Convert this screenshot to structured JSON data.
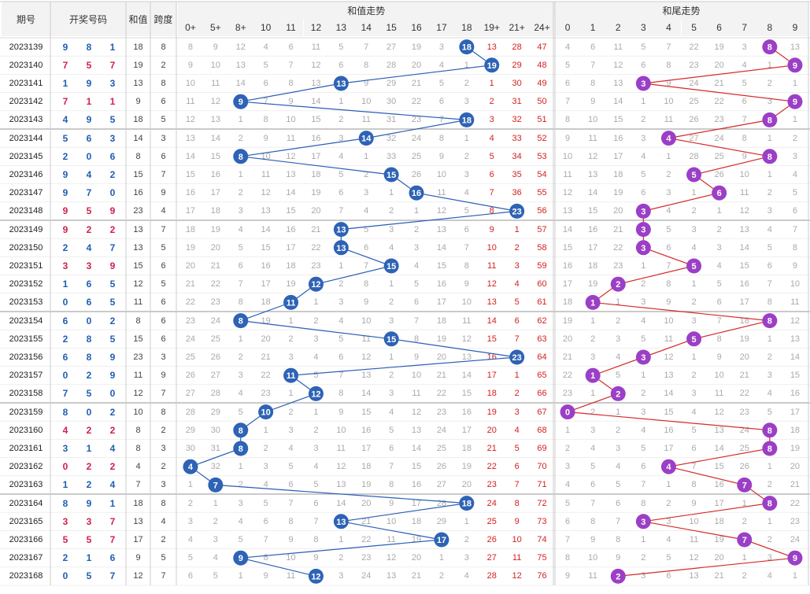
{
  "header": {
    "issue": "期号",
    "draw": "开奖号码",
    "sum": "和值",
    "span": "跨度",
    "sum_trend": "和值走势",
    "tail_trend": "和尾走势"
  },
  "sum_columns": [
    "0+",
    "5+",
    "8+",
    "10",
    "11",
    "12",
    "13",
    "14",
    "15",
    "16",
    "17",
    "18",
    "19+",
    "21+",
    "24+"
  ],
  "tail_columns": [
    "0",
    "1",
    "2",
    "3",
    "4",
    "5",
    "6",
    "7",
    "8",
    "9"
  ],
  "colors": {
    "blue_ball": "#2e63b5",
    "purple_ball": "#9b3fc6",
    "blue_line": "#2a5db5",
    "red_line": "#d42a2a",
    "draw_red": "#d0204c",
    "draw_blue": "#1f5fb0"
  },
  "rows": [
    {
      "issue": "2023139",
      "draw": [
        "9",
        "8",
        "1"
      ],
      "draw_color": "blue",
      "sum": "18",
      "span": "8",
      "sum_cells": [
        "8",
        "9",
        "12",
        "4",
        "6",
        "11",
        "5",
        "7",
        "27",
        "19",
        "3",
        "18",
        "13",
        "28",
        "47"
      ],
      "tail_cells": [
        "4",
        "6",
        "11",
        "5",
        "7",
        "22",
        "19",
        "3",
        "8",
        "13"
      ]
    },
    {
      "issue": "2023140",
      "draw": [
        "7",
        "5",
        "7"
      ],
      "draw_color": "red",
      "sum": "19",
      "span": "2",
      "sum_cells": [
        "9",
        "10",
        "13",
        "5",
        "7",
        "12",
        "6",
        "8",
        "28",
        "20",
        "4",
        "1",
        "19",
        "29",
        "48"
      ],
      "tail_cells": [
        "5",
        "7",
        "12",
        "6",
        "8",
        "23",
        "20",
        "4",
        "1",
        "9"
      ]
    },
    {
      "issue": "2023141",
      "draw": [
        "1",
        "9",
        "3"
      ],
      "draw_color": "blue",
      "sum": "13",
      "span": "8",
      "sum_cells": [
        "10",
        "11",
        "14",
        "6",
        "8",
        "13",
        "13",
        "9",
        "29",
        "21",
        "5",
        "2",
        "1",
        "30",
        "49"
      ],
      "tail_cells": [
        "6",
        "8",
        "13",
        "3",
        "9",
        "24",
        "21",
        "5",
        "2",
        "1"
      ]
    },
    {
      "issue": "2023142",
      "draw": [
        "7",
        "1",
        "1"
      ],
      "draw_color": "red",
      "sum": "9",
      "span": "6",
      "sum_cells": [
        "11",
        "12",
        "9",
        "7",
        "9",
        "14",
        "1",
        "10",
        "30",
        "22",
        "6",
        "3",
        "2",
        "31",
        "50"
      ],
      "tail_cells": [
        "7",
        "9",
        "14",
        "1",
        "10",
        "25",
        "22",
        "6",
        "3",
        "9"
      ]
    },
    {
      "issue": "2023143",
      "draw": [
        "4",
        "9",
        "5"
      ],
      "draw_color": "blue",
      "sum": "18",
      "span": "5",
      "sum_cells": [
        "12",
        "13",
        "1",
        "8",
        "10",
        "15",
        "2",
        "11",
        "31",
        "23",
        "7",
        "18",
        "3",
        "32",
        "51"
      ],
      "tail_cells": [
        "8",
        "10",
        "15",
        "2",
        "11",
        "26",
        "23",
        "7",
        "8",
        "1"
      ]
    },
    {
      "issue": "2023144",
      "draw": [
        "5",
        "6",
        "3"
      ],
      "draw_color": "blue",
      "sum": "14",
      "span": "3",
      "sum_cells": [
        "13",
        "14",
        "2",
        "9",
        "11",
        "16",
        "3",
        "14",
        "32",
        "24",
        "8",
        "1",
        "4",
        "33",
        "52"
      ],
      "tail_cells": [
        "9",
        "11",
        "16",
        "3",
        "4",
        "27",
        "24",
        "8",
        "1",
        "2"
      ]
    },
    {
      "issue": "2023145",
      "draw": [
        "2",
        "0",
        "6"
      ],
      "draw_color": "blue",
      "sum": "8",
      "span": "6",
      "sum_cells": [
        "14",
        "15",
        "8",
        "10",
        "12",
        "17",
        "4",
        "1",
        "33",
        "25",
        "9",
        "2",
        "5",
        "34",
        "53"
      ],
      "tail_cells": [
        "10",
        "12",
        "17",
        "4",
        "1",
        "28",
        "25",
        "9",
        "8",
        "3"
      ]
    },
    {
      "issue": "2023146",
      "draw": [
        "9",
        "4",
        "2"
      ],
      "draw_color": "blue",
      "sum": "15",
      "span": "7",
      "sum_cells": [
        "15",
        "16",
        "1",
        "11",
        "13",
        "18",
        "5",
        "2",
        "15",
        "26",
        "10",
        "3",
        "6",
        "35",
        "54"
      ],
      "tail_cells": [
        "11",
        "13",
        "18",
        "5",
        "2",
        "5",
        "26",
        "10",
        "1",
        "4"
      ]
    },
    {
      "issue": "2023147",
      "draw": [
        "9",
        "7",
        "0"
      ],
      "draw_color": "blue",
      "sum": "16",
      "span": "9",
      "sum_cells": [
        "16",
        "17",
        "2",
        "12",
        "14",
        "19",
        "6",
        "3",
        "1",
        "16",
        "11",
        "4",
        "7",
        "36",
        "55"
      ],
      "tail_cells": [
        "12",
        "14",
        "19",
        "6",
        "3",
        "1",
        "6",
        "11",
        "2",
        "5"
      ]
    },
    {
      "issue": "2023148",
      "draw": [
        "9",
        "5",
        "9"
      ],
      "draw_color": "red",
      "sum": "23",
      "span": "4",
      "sum_cells": [
        "17",
        "18",
        "3",
        "13",
        "15",
        "20",
        "7",
        "4",
        "2",
        "1",
        "12",
        "5",
        "8",
        "23",
        "56"
      ],
      "tail_cells": [
        "13",
        "15",
        "20",
        "3",
        "4",
        "2",
        "1",
        "12",
        "3",
        "6"
      ]
    },
    {
      "issue": "2023149",
      "draw": [
        "9",
        "2",
        "2"
      ],
      "draw_color": "red",
      "sum": "13",
      "span": "7",
      "sum_cells": [
        "18",
        "19",
        "4",
        "14",
        "16",
        "21",
        "13",
        "5",
        "3",
        "2",
        "13",
        "6",
        "9",
        "1",
        "57"
      ],
      "tail_cells": [
        "14",
        "16",
        "21",
        "3",
        "5",
        "3",
        "2",
        "13",
        "4",
        "7"
      ]
    },
    {
      "issue": "2023150",
      "draw": [
        "2",
        "4",
        "7"
      ],
      "draw_color": "blue",
      "sum": "13",
      "span": "5",
      "sum_cells": [
        "19",
        "20",
        "5",
        "15",
        "17",
        "22",
        "13",
        "6",
        "4",
        "3",
        "14",
        "7",
        "10",
        "2",
        "58"
      ],
      "tail_cells": [
        "15",
        "17",
        "22",
        "3",
        "6",
        "4",
        "3",
        "14",
        "5",
        "8"
      ]
    },
    {
      "issue": "2023151",
      "draw": [
        "3",
        "3",
        "9"
      ],
      "draw_color": "red",
      "sum": "15",
      "span": "6",
      "sum_cells": [
        "20",
        "21",
        "6",
        "16",
        "18",
        "23",
        "1",
        "7",
        "15",
        "4",
        "15",
        "8",
        "11",
        "3",
        "59"
      ],
      "tail_cells": [
        "16",
        "18",
        "23",
        "1",
        "7",
        "5",
        "4",
        "15",
        "6",
        "9"
      ]
    },
    {
      "issue": "2023152",
      "draw": [
        "1",
        "6",
        "5"
      ],
      "draw_color": "blue",
      "sum": "12",
      "span": "5",
      "sum_cells": [
        "21",
        "22",
        "7",
        "17",
        "19",
        "12",
        "2",
        "8",
        "1",
        "5",
        "16",
        "9",
        "12",
        "4",
        "60"
      ],
      "tail_cells": [
        "17",
        "19",
        "2",
        "2",
        "8",
        "1",
        "5",
        "16",
        "7",
        "10"
      ]
    },
    {
      "issue": "2023153",
      "draw": [
        "0",
        "6",
        "5"
      ],
      "draw_color": "blue",
      "sum": "11",
      "span": "6",
      "sum_cells": [
        "22",
        "23",
        "8",
        "18",
        "11",
        "1",
        "3",
        "9",
        "2",
        "6",
        "17",
        "10",
        "13",
        "5",
        "61"
      ],
      "tail_cells": [
        "18",
        "1",
        "1",
        "3",
        "9",
        "2",
        "6",
        "17",
        "8",
        "11"
      ]
    },
    {
      "issue": "2023154",
      "draw": [
        "6",
        "0",
        "2"
      ],
      "draw_color": "blue",
      "sum": "8",
      "span": "6",
      "sum_cells": [
        "23",
        "24",
        "8",
        "19",
        "1",
        "2",
        "4",
        "10",
        "3",
        "7",
        "18",
        "11",
        "14",
        "6",
        "62"
      ],
      "tail_cells": [
        "19",
        "1",
        "2",
        "4",
        "10",
        "3",
        "7",
        "18",
        "8",
        "12"
      ]
    },
    {
      "issue": "2023155",
      "draw": [
        "2",
        "8",
        "5"
      ],
      "draw_color": "blue",
      "sum": "15",
      "span": "6",
      "sum_cells": [
        "24",
        "25",
        "1",
        "20",
        "2",
        "3",
        "5",
        "11",
        "15",
        "8",
        "19",
        "12",
        "15",
        "7",
        "63"
      ],
      "tail_cells": [
        "20",
        "2",
        "3",
        "5",
        "11",
        "5",
        "8",
        "19",
        "1",
        "13"
      ]
    },
    {
      "issue": "2023156",
      "draw": [
        "6",
        "8",
        "9"
      ],
      "draw_color": "blue",
      "sum": "23",
      "span": "3",
      "sum_cells": [
        "25",
        "26",
        "2",
        "21",
        "3",
        "4",
        "6",
        "12",
        "1",
        "9",
        "20",
        "13",
        "16",
        "23",
        "64"
      ],
      "tail_cells": [
        "21",
        "3",
        "4",
        "3",
        "12",
        "1",
        "9",
        "20",
        "2",
        "14"
      ]
    },
    {
      "issue": "2023157",
      "draw": [
        "0",
        "2",
        "9"
      ],
      "draw_color": "blue",
      "sum": "11",
      "span": "9",
      "sum_cells": [
        "26",
        "27",
        "3",
        "22",
        "11",
        "5",
        "7",
        "13",
        "2",
        "10",
        "21",
        "14",
        "17",
        "1",
        "65"
      ],
      "tail_cells": [
        "22",
        "1",
        "5",
        "1",
        "13",
        "2",
        "10",
        "21",
        "3",
        "15"
      ]
    },
    {
      "issue": "2023158",
      "draw": [
        "7",
        "5",
        "0"
      ],
      "draw_color": "blue",
      "sum": "12",
      "span": "7",
      "sum_cells": [
        "27",
        "28",
        "4",
        "23",
        "1",
        "12",
        "8",
        "14",
        "3",
        "11",
        "22",
        "15",
        "18",
        "2",
        "66"
      ],
      "tail_cells": [
        "23",
        "1",
        "2",
        "2",
        "14",
        "3",
        "11",
        "22",
        "4",
        "16"
      ]
    },
    {
      "issue": "2023159",
      "draw": [
        "8",
        "0",
        "2"
      ],
      "draw_color": "blue",
      "sum": "10",
      "span": "8",
      "sum_cells": [
        "28",
        "29",
        "5",
        "10",
        "2",
        "1",
        "9",
        "15",
        "4",
        "12",
        "23",
        "16",
        "19",
        "3",
        "67"
      ],
      "tail_cells": [
        "0",
        "2",
        "1",
        "3",
        "15",
        "4",
        "12",
        "23",
        "5",
        "17"
      ]
    },
    {
      "issue": "2023160",
      "draw": [
        "4",
        "2",
        "2"
      ],
      "draw_color": "red",
      "sum": "8",
      "span": "2",
      "sum_cells": [
        "29",
        "30",
        "8",
        "1",
        "3",
        "2",
        "10",
        "16",
        "5",
        "13",
        "24",
        "17",
        "20",
        "4",
        "68"
      ],
      "tail_cells": [
        "1",
        "3",
        "2",
        "4",
        "16",
        "5",
        "13",
        "24",
        "8",
        "18"
      ]
    },
    {
      "issue": "2023161",
      "draw": [
        "3",
        "1",
        "4"
      ],
      "draw_color": "blue",
      "sum": "8",
      "span": "3",
      "sum_cells": [
        "30",
        "31",
        "8",
        "2",
        "4",
        "3",
        "11",
        "17",
        "6",
        "14",
        "25",
        "18",
        "21",
        "5",
        "69"
      ],
      "tail_cells": [
        "2",
        "4",
        "3",
        "5",
        "17",
        "6",
        "14",
        "25",
        "8",
        "19"
      ]
    },
    {
      "issue": "2023162",
      "draw": [
        "0",
        "2",
        "2"
      ],
      "draw_color": "red",
      "sum": "4",
      "span": "2",
      "sum_cells": [
        "4",
        "32",
        "1",
        "3",
        "5",
        "4",
        "12",
        "18",
        "7",
        "15",
        "26",
        "19",
        "22",
        "6",
        "70"
      ],
      "tail_cells": [
        "3",
        "5",
        "4",
        "6",
        "4",
        "7",
        "15",
        "26",
        "1",
        "20"
      ]
    },
    {
      "issue": "2023163",
      "draw": [
        "1",
        "2",
        "4"
      ],
      "draw_color": "blue",
      "sum": "7",
      "span": "3",
      "sum_cells": [
        "1",
        "7",
        "2",
        "4",
        "6",
        "5",
        "13",
        "19",
        "8",
        "16",
        "27",
        "20",
        "23",
        "7",
        "71"
      ],
      "tail_cells": [
        "4",
        "6",
        "5",
        "7",
        "1",
        "8",
        "16",
        "7",
        "2",
        "21"
      ]
    },
    {
      "issue": "2023164",
      "draw": [
        "8",
        "9",
        "1"
      ],
      "draw_color": "blue",
      "sum": "18",
      "span": "8",
      "sum_cells": [
        "2",
        "1",
        "3",
        "5",
        "7",
        "6",
        "14",
        "20",
        "9",
        "17",
        "28",
        "18",
        "24",
        "8",
        "72"
      ],
      "tail_cells": [
        "5",
        "7",
        "6",
        "8",
        "2",
        "9",
        "17",
        "1",
        "8",
        "22"
      ]
    },
    {
      "issue": "2023165",
      "draw": [
        "3",
        "3",
        "7"
      ],
      "draw_color": "red",
      "sum": "13",
      "span": "4",
      "sum_cells": [
        "3",
        "2",
        "4",
        "6",
        "8",
        "7",
        "13",
        "21",
        "10",
        "18",
        "29",
        "1",
        "25",
        "9",
        "73"
      ],
      "tail_cells": [
        "6",
        "8",
        "7",
        "3",
        "3",
        "10",
        "18",
        "2",
        "1",
        "23"
      ]
    },
    {
      "issue": "2023166",
      "draw": [
        "5",
        "5",
        "7"
      ],
      "draw_color": "red",
      "sum": "17",
      "span": "2",
      "sum_cells": [
        "4",
        "3",
        "5",
        "7",
        "9",
        "8",
        "1",
        "22",
        "11",
        "19",
        "17",
        "2",
        "26",
        "10",
        "74"
      ],
      "tail_cells": [
        "7",
        "9",
        "8",
        "1",
        "4",
        "11",
        "19",
        "7",
        "2",
        "24"
      ]
    },
    {
      "issue": "2023167",
      "draw": [
        "2",
        "1",
        "6"
      ],
      "draw_color": "blue",
      "sum": "9",
      "span": "5",
      "sum_cells": [
        "5",
        "4",
        "9",
        "8",
        "10",
        "9",
        "2",
        "23",
        "12",
        "20",
        "1",
        "3",
        "27",
        "11",
        "75"
      ],
      "tail_cells": [
        "8",
        "10",
        "9",
        "2",
        "5",
        "12",
        "20",
        "1",
        "3",
        "9"
      ]
    },
    {
      "issue": "2023168",
      "draw": [
        "0",
        "5",
        "7"
      ],
      "draw_color": "blue",
      "sum": "12",
      "span": "7",
      "sum_cells": [
        "6",
        "5",
        "1",
        "9",
        "11",
        "12",
        "3",
        "24",
        "13",
        "21",
        "2",
        "4",
        "28",
        "12",
        "76"
      ],
      "tail_cells": [
        "9",
        "11",
        "2",
        "3",
        "6",
        "13",
        "21",
        "2",
        "4",
        "1"
      ]
    }
  ]
}
